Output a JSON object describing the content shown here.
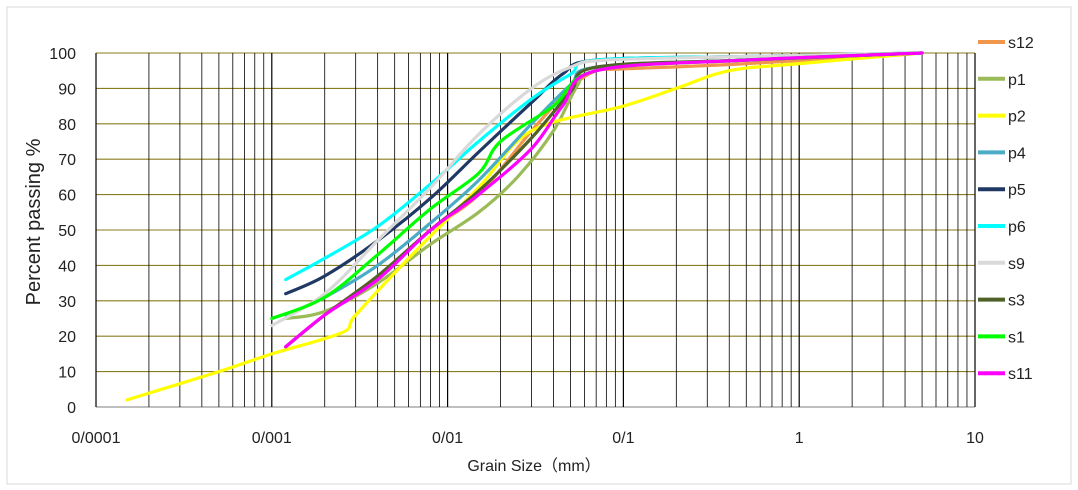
{
  "chart_data": {
    "type": "line",
    "title": "",
    "xlabel": "Grain Size（mm）",
    "ylabel": "Percent passing %",
    "x_scale": "log",
    "xlim": [
      0.0001,
      10
    ],
    "ylim": [
      0,
      100
    ],
    "x_tick_labels": [
      "0/0001",
      "0/001",
      "0/01",
      "0/1",
      "1",
      "10"
    ],
    "y_tick_labels": [
      "0",
      "10",
      "20",
      "30",
      "40",
      "50",
      "60",
      "70",
      "80",
      "90",
      "100"
    ],
    "grid": true,
    "legend_position": "right",
    "series": [
      {
        "name": "s12",
        "color": "#f0964d",
        "points": [
          [
            0.0012,
            17
          ],
          [
            0.002,
            26
          ],
          [
            0.004,
            37
          ],
          [
            0.008,
            50
          ],
          [
            0.015,
            60
          ],
          [
            0.03,
            78
          ],
          [
            0.05,
            90
          ],
          [
            0.07,
            95
          ],
          [
            0.1,
            95.5
          ],
          [
            0.5,
            97
          ],
          [
            5,
            100
          ]
        ]
      },
      {
        "name": "p1",
        "color": "#9bbb59",
        "points": [
          [
            0.0012,
            25
          ],
          [
            0.002,
            27
          ],
          [
            0.004,
            35
          ],
          [
            0.008,
            46
          ],
          [
            0.015,
            55
          ],
          [
            0.025,
            65
          ],
          [
            0.04,
            78
          ],
          [
            0.055,
            91
          ],
          [
            0.07,
            96
          ],
          [
            0.5,
            98
          ],
          [
            5,
            100
          ]
        ]
      },
      {
        "name": "p2",
        "color": "#ffff00",
        "points": [
          [
            0.00015,
            2
          ],
          [
            0.0005,
            10
          ],
          [
            0.001,
            15
          ],
          [
            0.0025,
            21
          ],
          [
            0.003,
            26
          ],
          [
            0.006,
            42
          ],
          [
            0.015,
            62
          ],
          [
            0.03,
            78
          ],
          [
            0.1,
            85
          ],
          [
            0.2,
            90
          ],
          [
            0.4,
            95
          ],
          [
            1,
            97
          ],
          [
            5,
            100
          ]
        ]
      },
      {
        "name": "p4",
        "color": "#4bacc6",
        "points": [
          [
            0.0012,
            26
          ],
          [
            0.002,
            31
          ],
          [
            0.004,
            40
          ],
          [
            0.008,
            52
          ],
          [
            0.015,
            64
          ],
          [
            0.03,
            80
          ],
          [
            0.05,
            91
          ],
          [
            0.07,
            96
          ],
          [
            0.5,
            98
          ],
          [
            5,
            100
          ]
        ]
      },
      {
        "name": "p5",
        "color": "#1f3864",
        "points": [
          [
            0.0012,
            32
          ],
          [
            0.002,
            37
          ],
          [
            0.004,
            47
          ],
          [
            0.008,
            59
          ],
          [
            0.015,
            72
          ],
          [
            0.03,
            86
          ],
          [
            0.045,
            94
          ],
          [
            0.07,
            98
          ],
          [
            0.5,
            99
          ],
          [
            5,
            100
          ]
        ]
      },
      {
        "name": "p6",
        "color": "#00ffff",
        "points": [
          [
            0.0012,
            36
          ],
          [
            0.002,
            42
          ],
          [
            0.004,
            51
          ],
          [
            0.008,
            63
          ],
          [
            0.015,
            75
          ],
          [
            0.03,
            87
          ],
          [
            0.05,
            94
          ],
          [
            0.07,
            98
          ],
          [
            0.5,
            99
          ],
          [
            5,
            100
          ]
        ]
      },
      {
        "name": "s9",
        "color": "#d9d9d9",
        "points": [
          [
            0.001,
            23
          ],
          [
            0.002,
            32
          ],
          [
            0.004,
            47
          ],
          [
            0.008,
            62
          ],
          [
            0.015,
            77
          ],
          [
            0.03,
            90
          ],
          [
            0.05,
            96
          ],
          [
            0.08,
            98
          ],
          [
            0.5,
            99
          ],
          [
            5,
            100
          ]
        ]
      },
      {
        "name": "s3",
        "color": "#4f6228",
        "points": [
          [
            0.0012,
            17
          ],
          [
            0.002,
            26
          ],
          [
            0.004,
            37
          ],
          [
            0.008,
            50
          ],
          [
            0.015,
            61
          ],
          [
            0.03,
            76
          ],
          [
            0.05,
            89
          ],
          [
            0.07,
            96
          ],
          [
            0.5,
            98
          ],
          [
            5,
            100
          ]
        ]
      },
      {
        "name": "s1",
        "color": "#00ff00",
        "points": [
          [
            0.001,
            25
          ],
          [
            0.002,
            31
          ],
          [
            0.004,
            43
          ],
          [
            0.008,
            56
          ],
          [
            0.015,
            66
          ],
          [
            0.02,
            75
          ],
          [
            0.04,
            85
          ],
          [
            0.07,
            95
          ],
          [
            0.5,
            98
          ],
          [
            5,
            100
          ]
        ]
      },
      {
        "name": "s11",
        "color": "#ff00ff",
        "points": [
          [
            0.0012,
            17
          ],
          [
            0.002,
            26
          ],
          [
            0.004,
            36
          ],
          [
            0.008,
            50
          ],
          [
            0.015,
            60
          ],
          [
            0.03,
            73
          ],
          [
            0.045,
            85
          ],
          [
            0.07,
            95
          ],
          [
            0.5,
            98
          ],
          [
            5,
            100
          ]
        ]
      }
    ]
  }
}
